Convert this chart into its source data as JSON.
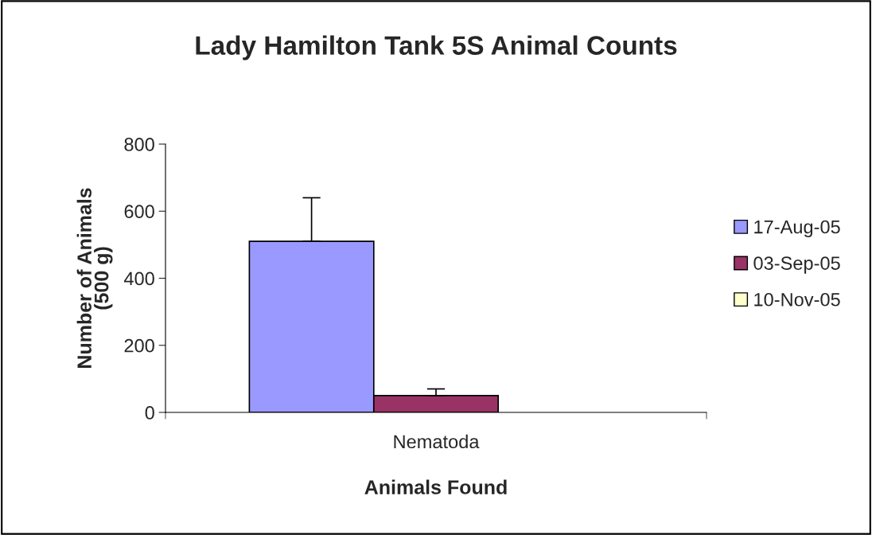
{
  "chart_data": {
    "type": "bar",
    "title": "Lady Hamilton Tank 5S Animal Counts",
    "xlabel": "Animals Found",
    "ylabel": "Number of Animals\n(500 g)",
    "categories": [
      "Nematoda"
    ],
    "series": [
      {
        "name": "17-Aug-05",
        "color": "#9999ff",
        "values": [
          510
        ],
        "errors": [
          [
            510,
            640
          ]
        ]
      },
      {
        "name": "03-Sep-05",
        "color": "#993366",
        "values": [
          50
        ],
        "errors": [
          [
            50,
            70
          ]
        ]
      },
      {
        "name": "10-Nov-05",
        "color": "#ffffcc",
        "values": [
          null
        ]
      }
    ],
    "ylim": [
      0,
      800
    ],
    "yticks": [
      0,
      200,
      400,
      600,
      800
    ],
    "grid": false,
    "legend": "right"
  }
}
